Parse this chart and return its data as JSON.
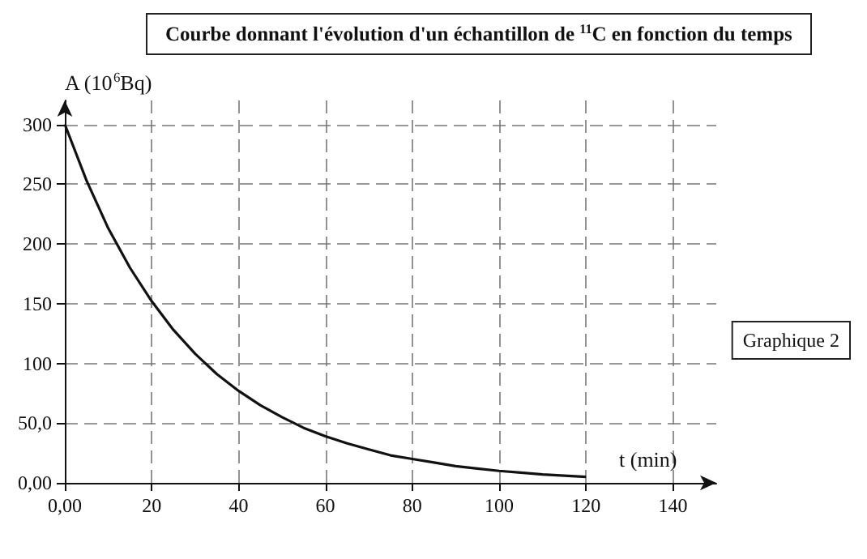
{
  "chart_data": {
    "type": "line",
    "title": "Courbe donnant l'évolution d'un échantillon de $^{11}$C en fonction du temps",
    "xlabel": "t (min)",
    "ylabel": "A (10$^{6}$Bq)",
    "annotations": [
      "Graphique 2"
    ],
    "x": [
      0,
      5,
      10,
      15,
      20,
      25,
      30,
      35,
      40,
      45,
      50,
      55,
      60,
      65,
      70,
      75,
      80,
      85,
      90,
      95,
      100,
      105,
      110,
      115,
      120
    ],
    "series": [
      {
        "color": "#111111",
        "values": [
          300,
          253,
          213,
          180,
          152,
          128,
          108,
          91,
          77,
          65,
          55,
          46,
          39,
          33,
          28,
          23,
          20,
          17,
          14,
          12,
          10,
          8.5,
          7,
          6,
          5
        ]
      }
    ],
    "xlim": [
      0,
      150
    ],
    "xticks": [
      {
        "value": 0,
        "label": "0,00"
      },
      20,
      40,
      60,
      80,
      100,
      120,
      140
    ],
    "ylim": [
      0,
      320
    ],
    "yticks": [
      {
        "value": 0,
        "label": "0,00"
      },
      {
        "value": 50,
        "label": "50,0"
      },
      100,
      150,
      200,
      250,
      300
    ],
    "grid": true,
    "marker": "none",
    "line_style": "solid"
  }
}
